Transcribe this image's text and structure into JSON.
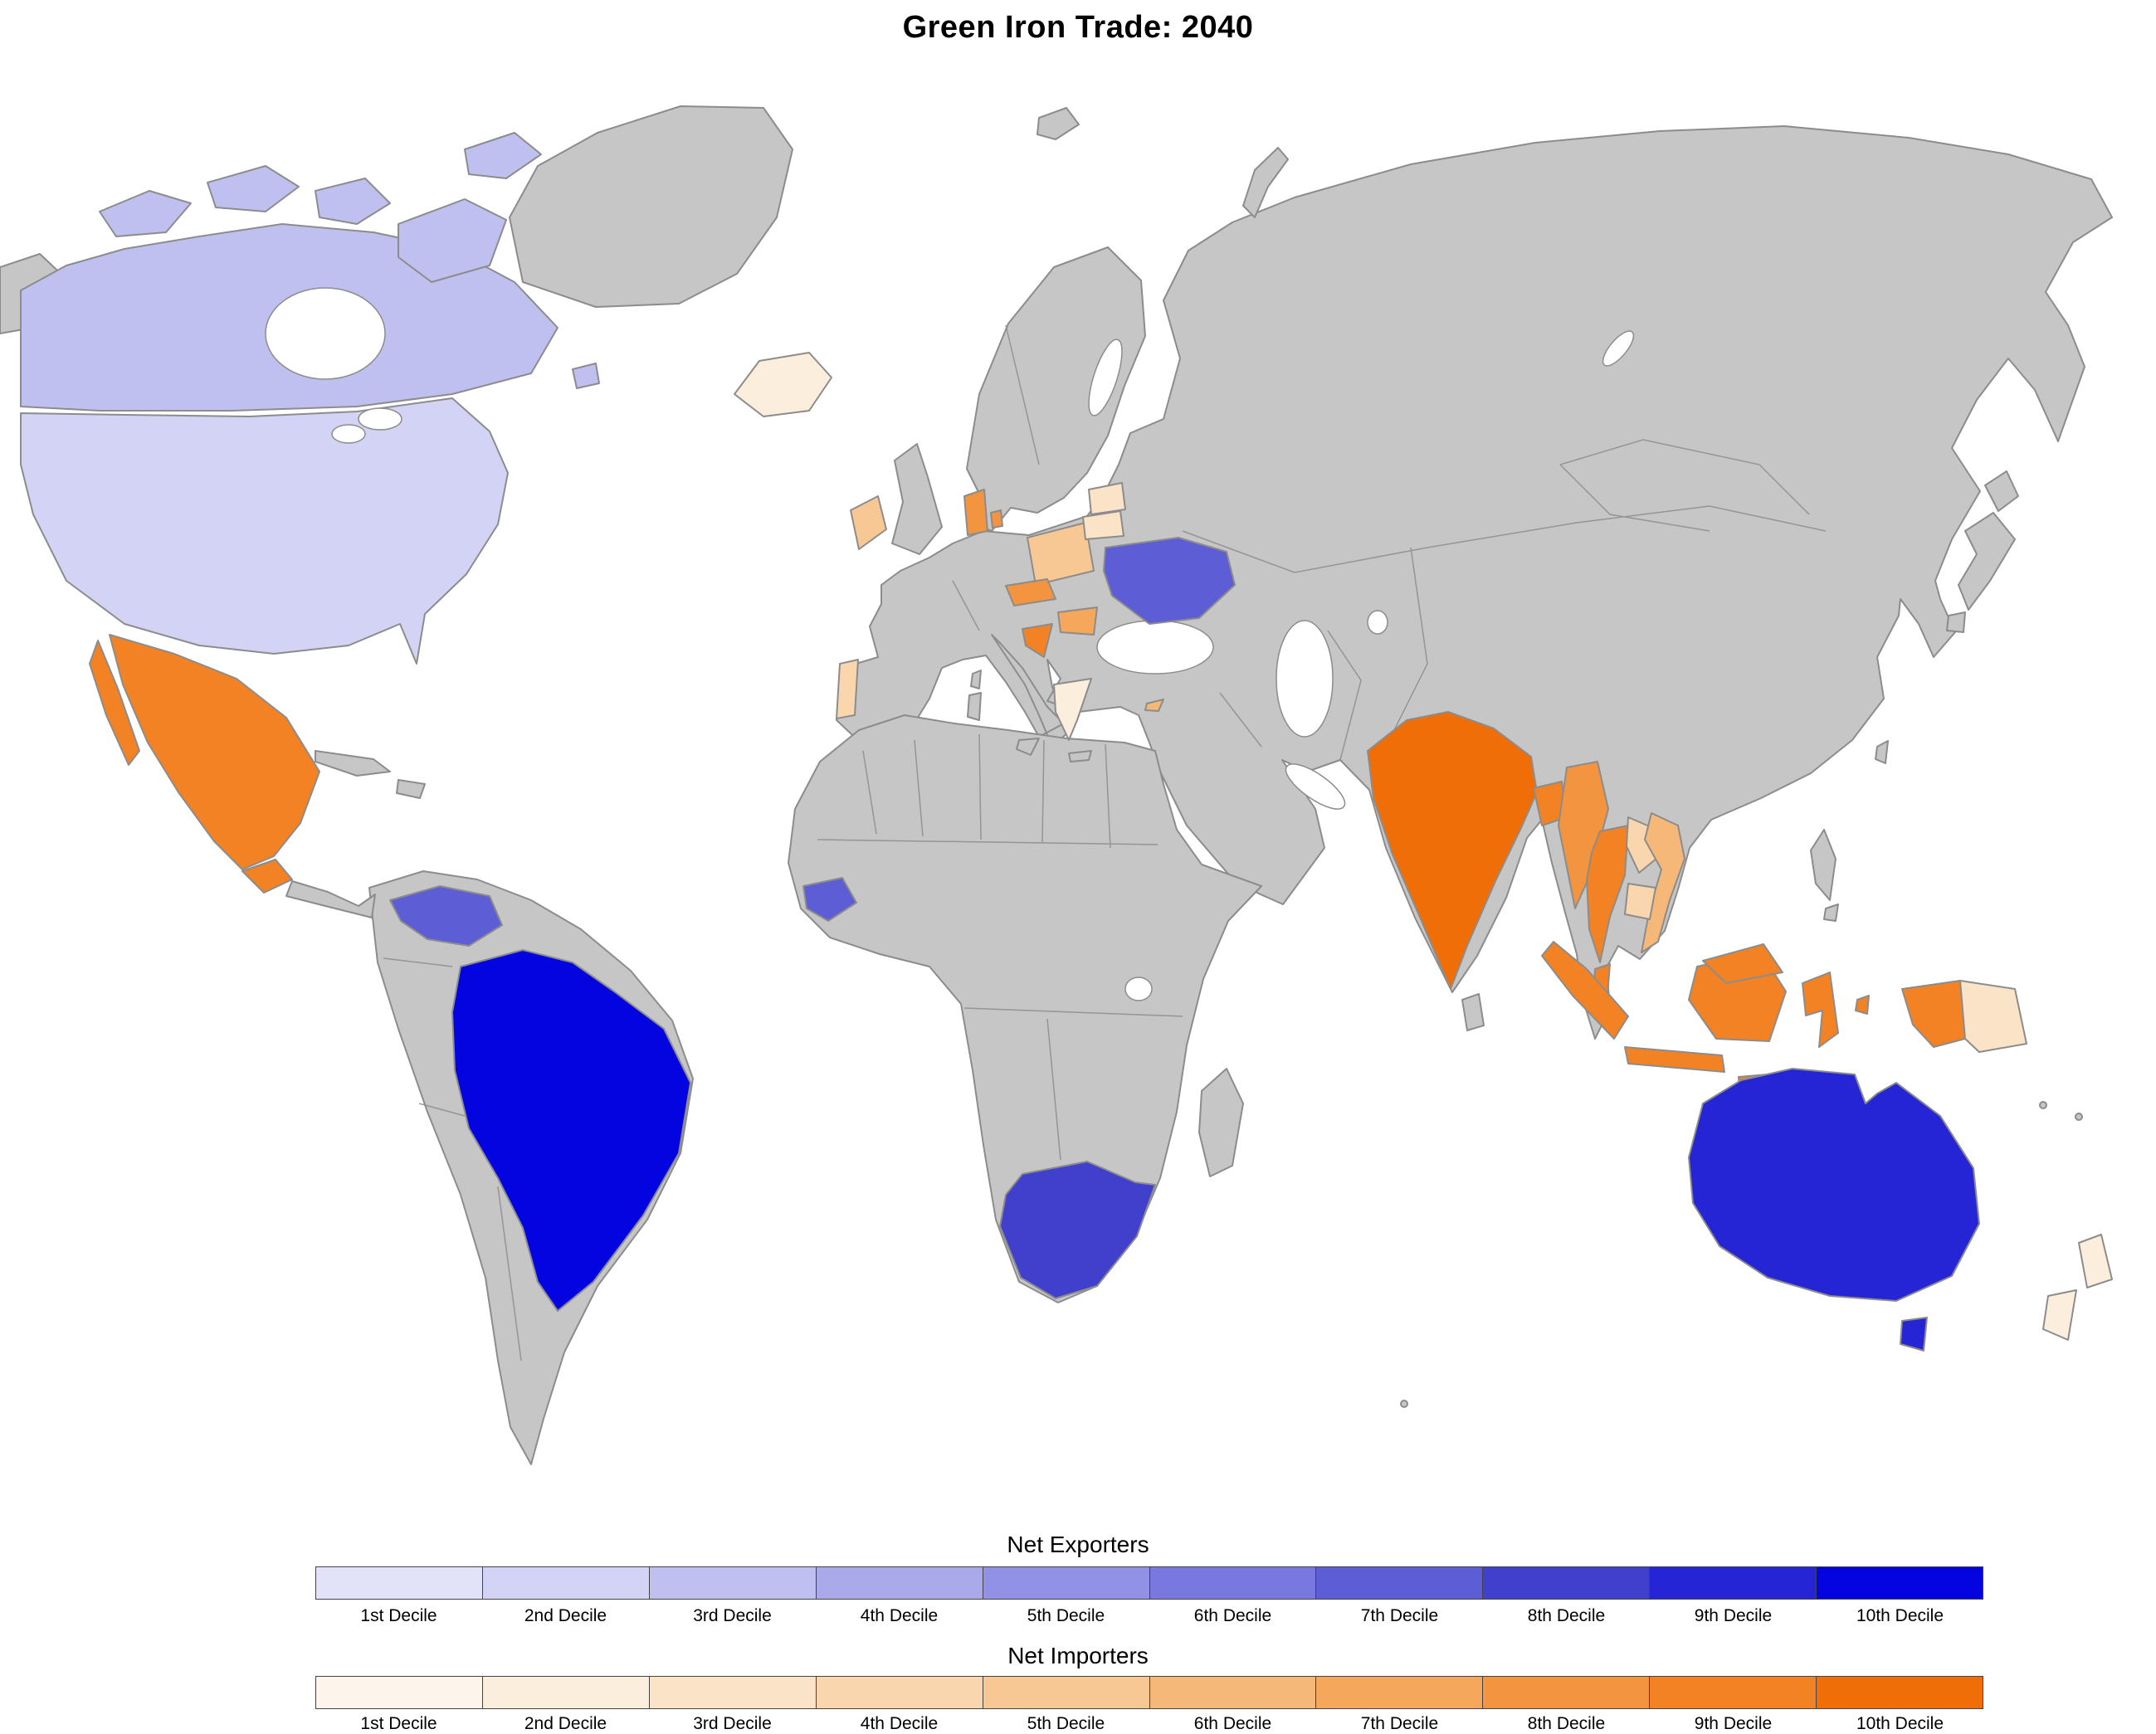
{
  "title": "Green Iron Trade: 2040",
  "legend": {
    "exporters_title": "Net Exporters",
    "importers_title": "Net Importers",
    "decile_labels": [
      "1st Decile",
      "2nd Decile",
      "3rd Decile",
      "4th Decile",
      "5th Decile",
      "6th Decile",
      "7th Decile",
      "8th Decile",
      "9th Decile",
      "10th Decile"
    ]
  },
  "palette": {
    "exporter": [
      "#e2e2f9",
      "#d3d3f5",
      "#c0c0f0",
      "#aaaaeb",
      "#9191e5",
      "#7878de",
      "#5d5dd6",
      "#4040cd",
      "#2525d5",
      "#0404e0"
    ],
    "importer": [
      "#fdf5ec",
      "#fceedd",
      "#fbe3c8",
      "#f9d6ae",
      "#f8c894",
      "#f6b878",
      "#f5a75c",
      "#f39540",
      "#f28224",
      "#f06e08"
    ]
  },
  "map": {
    "land_color": "#c6c6c6",
    "border_color": "#8c8c8c",
    "ocean_color": "#ffffff"
  },
  "countries": [
    {
      "id": "canada",
      "name": "Canada",
      "group": "exporter",
      "decile": 3
    },
    {
      "id": "usa",
      "name": "United States",
      "group": "exporter",
      "decile": 2
    },
    {
      "id": "venezuela",
      "name": "Venezuela",
      "group": "exporter",
      "decile": 7
    },
    {
      "id": "brazil",
      "name": "Brazil",
      "group": "exporter",
      "decile": 10
    },
    {
      "id": "ukraine",
      "name": "Ukraine",
      "group": "exporter",
      "decile": 7
    },
    {
      "id": "guinea",
      "name": "Guinea",
      "group": "exporter",
      "decile": 7
    },
    {
      "id": "south-africa",
      "name": "South Africa",
      "group": "exporter",
      "decile": 8
    },
    {
      "id": "australia",
      "name": "Australia",
      "group": "exporter",
      "decile": 9
    },
    {
      "id": "mexico",
      "name": "Mexico",
      "group": "importer",
      "decile": 9
    },
    {
      "id": "guatemala",
      "name": "Guatemala",
      "group": "importer",
      "decile": 9
    },
    {
      "id": "iceland",
      "name": "Iceland",
      "group": "importer",
      "decile": 2
    },
    {
      "id": "ireland",
      "name": "Ireland",
      "group": "importer",
      "decile": 5
    },
    {
      "id": "portugal",
      "name": "Portugal",
      "group": "importer",
      "decile": 4
    },
    {
      "id": "denmark",
      "name": "Denmark",
      "group": "importer",
      "decile": 8
    },
    {
      "id": "poland",
      "name": "Poland",
      "group": "importer",
      "decile": 5
    },
    {
      "id": "latvia",
      "name": "Latvia",
      "group": "importer",
      "decile": 3
    },
    {
      "id": "lithuania",
      "name": "Lithuania",
      "group": "importer",
      "decile": 3
    },
    {
      "id": "czechia",
      "name": "Czechia",
      "group": "importer",
      "decile": 8
    },
    {
      "id": "croatia",
      "name": "Croatia",
      "group": "importer",
      "decile": 9
    },
    {
      "id": "hungary",
      "name": "Hungary",
      "group": "importer",
      "decile": 7
    },
    {
      "id": "greece",
      "name": "Greece",
      "group": "importer",
      "decile": 2
    },
    {
      "id": "cyprus",
      "name": "Cyprus",
      "group": "importer",
      "decile": 6
    },
    {
      "id": "india",
      "name": "India",
      "group": "importer",
      "decile": 10
    },
    {
      "id": "bangladesh",
      "name": "Bangladesh",
      "group": "importer",
      "decile": 9
    },
    {
      "id": "myanmar",
      "name": "Myanmar",
      "group": "importer",
      "decile": 8
    },
    {
      "id": "thailand",
      "name": "Thailand",
      "group": "importer",
      "decile": 9
    },
    {
      "id": "laos",
      "name": "Laos",
      "group": "importer",
      "decile": 4
    },
    {
      "id": "vietnam",
      "name": "Vietnam",
      "group": "importer",
      "decile": 6
    },
    {
      "id": "cambodia",
      "name": "Cambodia",
      "group": "importer",
      "decile": 4
    },
    {
      "id": "malaysia",
      "name": "Malaysia",
      "group": "importer",
      "decile": 9
    },
    {
      "id": "indonesia",
      "name": "Indonesia",
      "group": "importer",
      "decile": 9
    },
    {
      "id": "papua-new-guinea",
      "name": "Papua New Guinea",
      "group": "importer",
      "decile": 3
    },
    {
      "id": "new-zealand",
      "name": "New Zealand",
      "group": "importer",
      "decile": 2
    }
  ]
}
